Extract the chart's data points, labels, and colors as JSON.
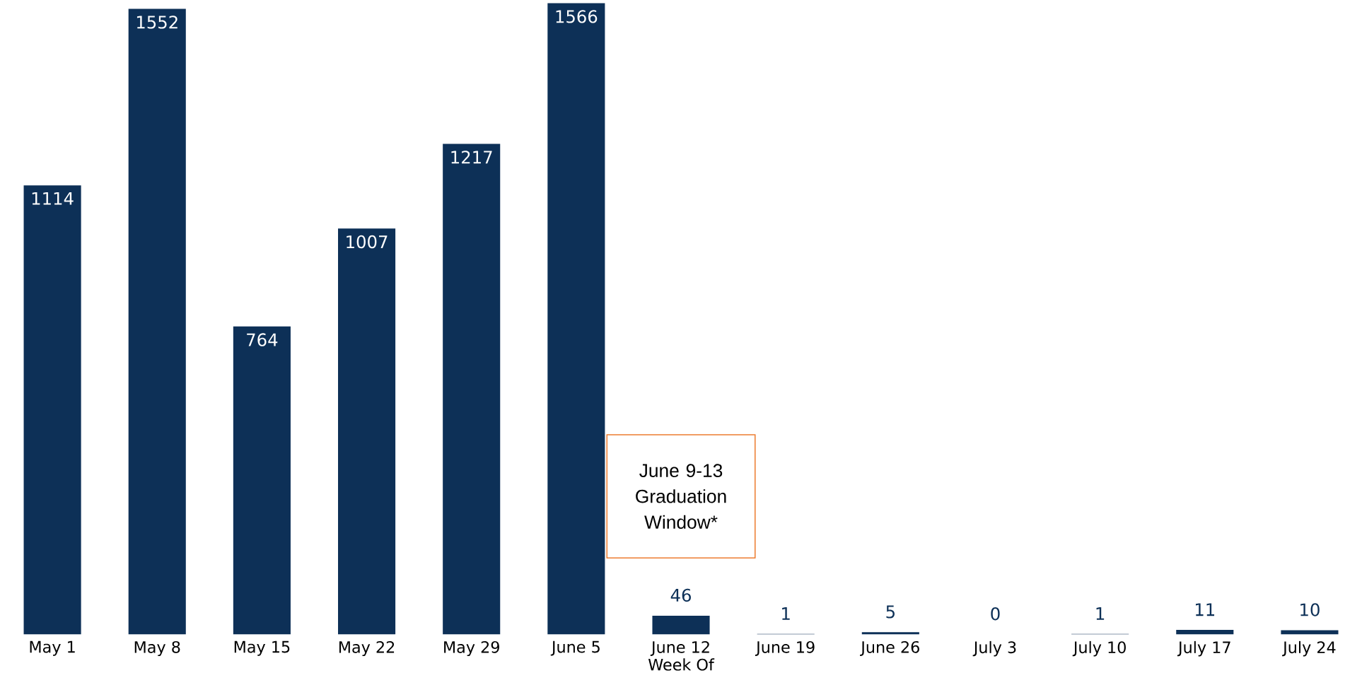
{
  "chart_data": {
    "type": "bar",
    "xlabel": "Week Of",
    "categories": [
      "May 1",
      "May 8",
      "May 15",
      "May 22",
      "May 29",
      "June 5",
      "June 12",
      "June 19",
      "June 26",
      "July 3",
      "July 10",
      "July 17",
      "July 24"
    ],
    "values": [
      1114,
      1552,
      764,
      1007,
      1217,
      1566,
      46,
      1,
      5,
      0,
      1,
      11,
      10
    ],
    "color": "#0d3057",
    "data_labels": true,
    "annotations": [
      "June 9-13 Graduation Window*"
    ]
  }
}
